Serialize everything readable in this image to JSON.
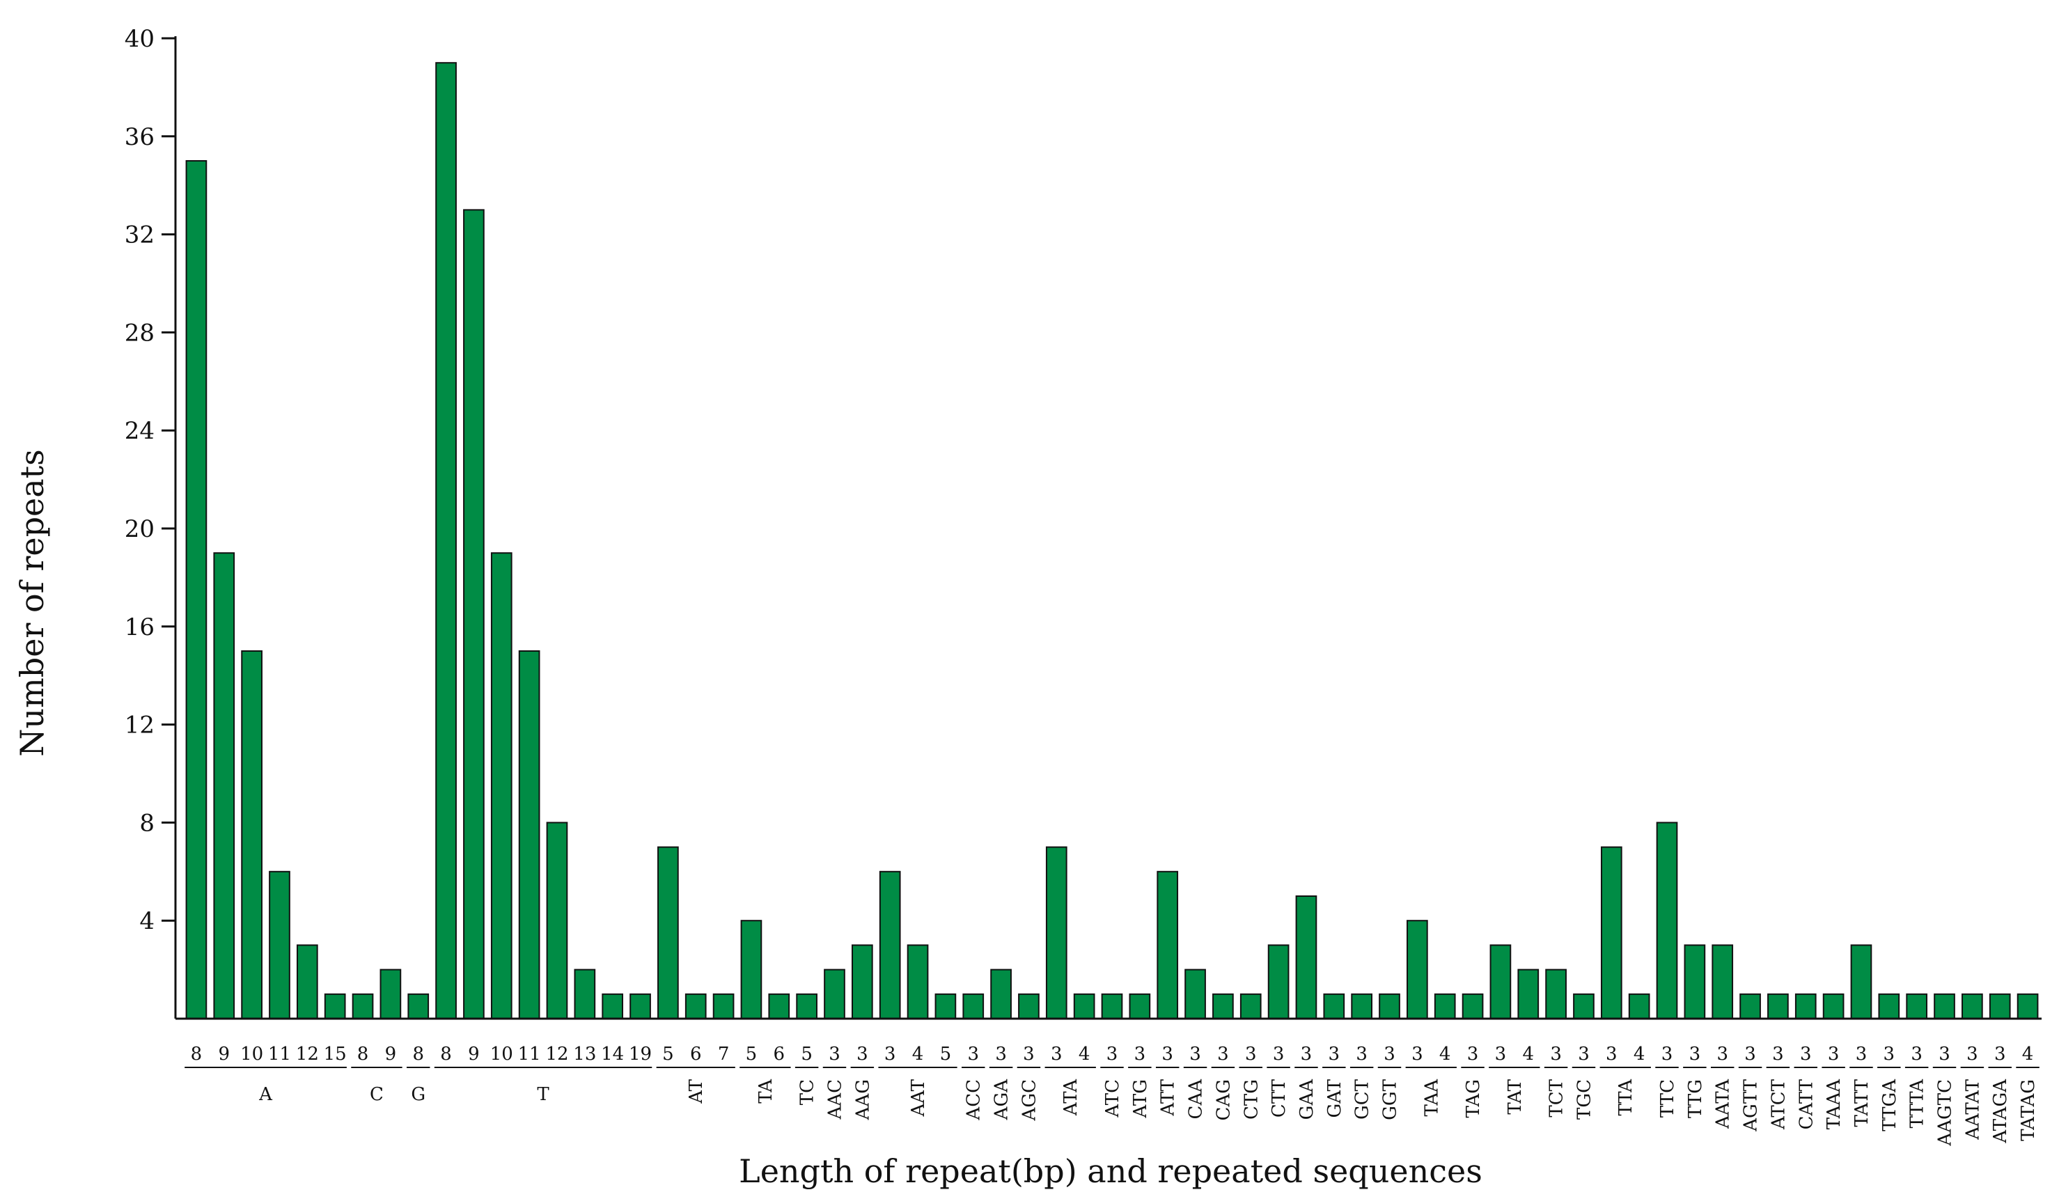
{
  "chart_data": {
    "type": "bar",
    "title": "",
    "xlabel": "Length of repeat(bp) and repeated sequences",
    "ylabel": "Number of repeats",
    "ylim": [
      0,
      40
    ],
    "yticks": [
      "4",
      "8",
      "12",
      "16",
      "20",
      "24",
      "28",
      "32",
      "36",
      "40"
    ],
    "grid": false,
    "legend": "none",
    "bar_color": "#008C45",
    "bar_edge_color": "#111111",
    "groups": [
      {
        "seq": "A",
        "bars": [
          {
            "len": "8",
            "value": 35
          },
          {
            "len": "9",
            "value": 19
          },
          {
            "len": "10",
            "value": 15
          },
          {
            "len": "11",
            "value": 6
          },
          {
            "len": "12",
            "value": 3
          },
          {
            "len": "15",
            "value": 1
          }
        ]
      },
      {
        "seq": "C",
        "bars": [
          {
            "len": "8",
            "value": 1
          },
          {
            "len": "9",
            "value": 2
          }
        ]
      },
      {
        "seq": "G",
        "bars": [
          {
            "len": "8",
            "value": 1
          }
        ]
      },
      {
        "seq": "T",
        "bars": [
          {
            "len": "8",
            "value": 39
          },
          {
            "len": "9",
            "value": 33
          },
          {
            "len": "10",
            "value": 19
          },
          {
            "len": "11",
            "value": 15
          },
          {
            "len": "12",
            "value": 8
          },
          {
            "len": "13",
            "value": 2
          },
          {
            "len": "14",
            "value": 1
          },
          {
            "len": "19",
            "value": 1
          }
        ]
      },
      {
        "seq": "AT",
        "bars": [
          {
            "len": "5",
            "value": 7
          },
          {
            "len": "6",
            "value": 1
          },
          {
            "len": "7",
            "value": 1
          }
        ]
      },
      {
        "seq": "TA",
        "bars": [
          {
            "len": "5",
            "value": 4
          },
          {
            "len": "6",
            "value": 1
          }
        ]
      },
      {
        "seq": "TC",
        "bars": [
          {
            "len": "5",
            "value": 1
          }
        ]
      },
      {
        "seq": "AAC",
        "bars": [
          {
            "len": "3",
            "value": 2
          }
        ]
      },
      {
        "seq": "AAG",
        "bars": [
          {
            "len": "3",
            "value": 3
          }
        ]
      },
      {
        "seq": "AAT",
        "bars": [
          {
            "len": "3",
            "value": 6
          },
          {
            "len": "4",
            "value": 3
          },
          {
            "len": "5",
            "value": 1
          }
        ]
      },
      {
        "seq": "ACC",
        "bars": [
          {
            "len": "3",
            "value": 1
          }
        ]
      },
      {
        "seq": "AGA",
        "bars": [
          {
            "len": "3",
            "value": 2
          }
        ]
      },
      {
        "seq": "AGC",
        "bars": [
          {
            "len": "3",
            "value": 1
          }
        ]
      },
      {
        "seq": "ATA",
        "bars": [
          {
            "len": "3",
            "value": 7
          },
          {
            "len": "4",
            "value": 1
          }
        ]
      },
      {
        "seq": "ATC",
        "bars": [
          {
            "len": "3",
            "value": 1
          }
        ]
      },
      {
        "seq": "ATG",
        "bars": [
          {
            "len": "3",
            "value": 1
          }
        ]
      },
      {
        "seq": "ATT",
        "bars": [
          {
            "len": "3",
            "value": 6
          }
        ]
      },
      {
        "seq": "CAA",
        "bars": [
          {
            "len": "3",
            "value": 2
          }
        ]
      },
      {
        "seq": "CAG",
        "bars": [
          {
            "len": "3",
            "value": 1
          }
        ]
      },
      {
        "seq": "CTG",
        "bars": [
          {
            "len": "3",
            "value": 1
          }
        ]
      },
      {
        "seq": "CTT",
        "bars": [
          {
            "len": "3",
            "value": 3
          }
        ]
      },
      {
        "seq": "GAA",
        "bars": [
          {
            "len": "3",
            "value": 5
          }
        ]
      },
      {
        "seq": "GAT",
        "bars": [
          {
            "len": "3",
            "value": 1
          }
        ]
      },
      {
        "seq": "GCT",
        "bars": [
          {
            "len": "3",
            "value": 1
          }
        ]
      },
      {
        "seq": "GGT",
        "bars": [
          {
            "len": "3",
            "value": 1
          }
        ]
      },
      {
        "seq": "TAA",
        "bars": [
          {
            "len": "3",
            "value": 4
          },
          {
            "len": "4",
            "value": 1
          }
        ]
      },
      {
        "seq": "TAG",
        "bars": [
          {
            "len": "3",
            "value": 1
          }
        ]
      },
      {
        "seq": "TAT",
        "bars": [
          {
            "len": "3",
            "value": 3
          },
          {
            "len": "4",
            "value": 2
          }
        ]
      },
      {
        "seq": "TCT",
        "bars": [
          {
            "len": "3",
            "value": 2
          }
        ]
      },
      {
        "seq": "TGC",
        "bars": [
          {
            "len": "3",
            "value": 1
          }
        ]
      },
      {
        "seq": "TTA",
        "bars": [
          {
            "len": "3",
            "value": 7
          },
          {
            "len": "4",
            "value": 1
          }
        ]
      },
      {
        "seq": "TTC",
        "bars": [
          {
            "len": "3",
            "value": 8
          }
        ]
      },
      {
        "seq": "TTG",
        "bars": [
          {
            "len": "3",
            "value": 3
          }
        ]
      },
      {
        "seq": "AATA",
        "bars": [
          {
            "len": "3",
            "value": 3
          }
        ]
      },
      {
        "seq": "AGTT",
        "bars": [
          {
            "len": "3",
            "value": 1
          }
        ]
      },
      {
        "seq": "ATCT",
        "bars": [
          {
            "len": "3",
            "value": 1
          }
        ]
      },
      {
        "seq": "CATT",
        "bars": [
          {
            "len": "3",
            "value": 1
          }
        ]
      },
      {
        "seq": "TAAA",
        "bars": [
          {
            "len": "3",
            "value": 1
          }
        ]
      },
      {
        "seq": "TATT",
        "bars": [
          {
            "len": "3",
            "value": 3
          }
        ]
      },
      {
        "seq": "TTGA",
        "bars": [
          {
            "len": "3",
            "value": 1
          }
        ]
      },
      {
        "seq": "TTTA",
        "bars": [
          {
            "len": "3",
            "value": 1
          }
        ]
      },
      {
        "seq": "AAGTC",
        "bars": [
          {
            "len": "3",
            "value": 1
          }
        ]
      },
      {
        "seq": "AATAT",
        "bars": [
          {
            "len": "3",
            "value": 1
          }
        ]
      },
      {
        "seq": "ATAGA",
        "bars": [
          {
            "len": "3",
            "value": 1
          }
        ]
      },
      {
        "seq": "TATAG",
        "bars": [
          {
            "len": "4",
            "value": 1
          }
        ]
      }
    ]
  }
}
